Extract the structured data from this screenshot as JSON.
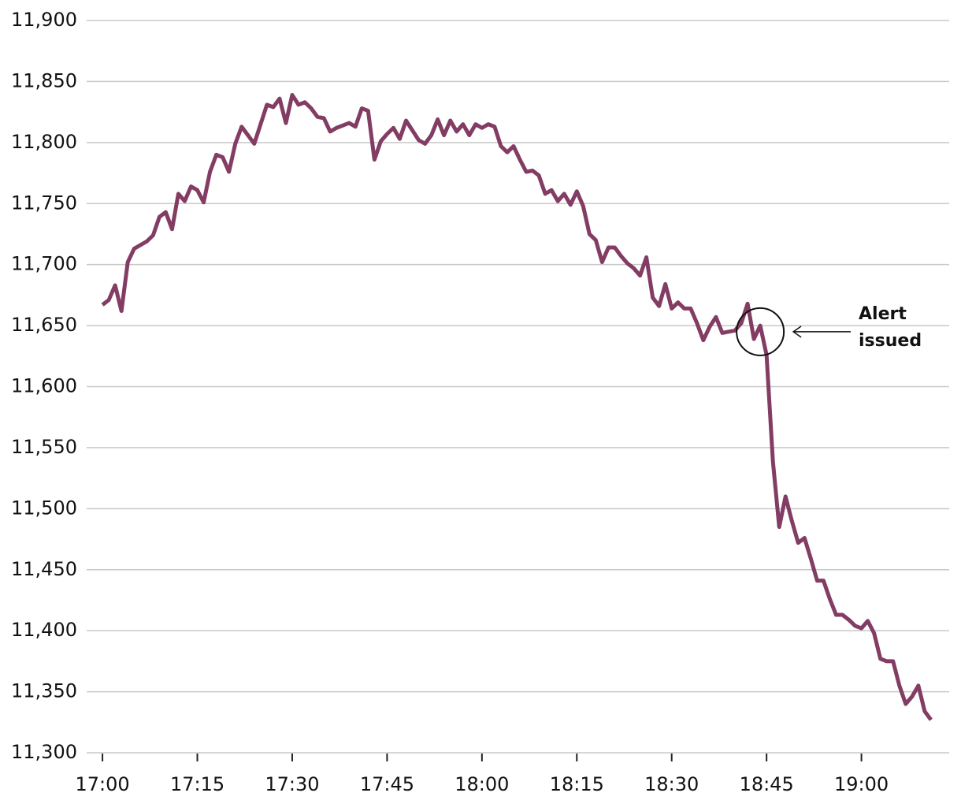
{
  "chart_data": {
    "type": "line",
    "x": [
      "17:00",
      "17:01",
      "17:02",
      "17:03",
      "17:04",
      "17:05",
      "17:06",
      "17:07",
      "17:08",
      "17:09",
      "17:10",
      "17:11",
      "17:12",
      "17:13",
      "17:14",
      "17:15",
      "17:16",
      "17:17",
      "17:18",
      "17:19",
      "17:20",
      "17:21",
      "17:22",
      "17:23",
      "17:24",
      "17:25",
      "17:26",
      "17:27",
      "17:28",
      "17:29",
      "17:30",
      "17:31",
      "17:32",
      "17:33",
      "17:34",
      "17:35",
      "17:36",
      "17:37",
      "17:38",
      "17:39",
      "17:40",
      "17:41",
      "17:42",
      "17:43",
      "17:44",
      "17:45",
      "17:46",
      "17:47",
      "17:48",
      "17:49",
      "17:50",
      "17:51",
      "17:52",
      "17:53",
      "17:54",
      "17:55",
      "17:56",
      "17:57",
      "17:58",
      "17:59",
      "18:00",
      "18:01",
      "18:02",
      "18:03",
      "18:04",
      "18:05",
      "18:06",
      "18:07",
      "18:08",
      "18:09",
      "18:10",
      "18:11",
      "18:12",
      "18:13",
      "18:14",
      "18:15",
      "18:16",
      "18:17",
      "18:18",
      "18:19",
      "18:20",
      "18:21",
      "18:22",
      "18:23",
      "18:24",
      "18:25",
      "18:26",
      "18:27",
      "18:28",
      "18:29",
      "18:30",
      "18:31",
      "18:32",
      "18:33",
      "18:34",
      "18:35",
      "18:36",
      "18:37",
      "18:38",
      "18:39",
      "18:40",
      "18:41",
      "18:42",
      "18:43",
      "18:44",
      "18:45",
      "18:46",
      "18:47",
      "18:48",
      "18:49",
      "18:50",
      "18:51",
      "18:52",
      "18:53",
      "18:54",
      "18:55",
      "18:56",
      "18:57",
      "18:58",
      "18:59",
      "19:00",
      "19:01",
      "19:02",
      "19:03",
      "19:04",
      "19:05",
      "19:06",
      "19:07",
      "19:08",
      "19:09",
      "19:10",
      "19:11"
    ],
    "series": [
      {
        "color": "#833c63",
        "values": [
          11667,
          11671,
          11683,
          11662,
          11702,
          11713,
          11716,
          11719,
          11724,
          11739,
          11743,
          11729,
          11758,
          11752,
          11764,
          11761,
          11751,
          11776,
          11790,
          11788,
          11776,
          11799,
          11813,
          11806,
          11799,
          11815,
          11831,
          11829,
          11836,
          11816,
          11839,
          11831,
          11833,
          11828,
          11821,
          11820,
          11809,
          11812,
          11814,
          11816,
          11813,
          11828,
          11826,
          11786,
          11801,
          11807,
          11812,
          11803,
          11818,
          11810,
          11802,
          11799,
          11806,
          11819,
          11806,
          11818,
          11809,
          11815,
          11806,
          11815,
          11812,
          11815,
          11813,
          11797,
          11792,
          11797,
          11786,
          11776,
          11777,
          11773,
          11758,
          11761,
          11752,
          11758,
          11749,
          11760,
          11748,
          11725,
          11720,
          11702,
          11714,
          11714,
          11707,
          11701,
          11697,
          11691,
          11706,
          11673,
          11666,
          11684,
          11664,
          11669,
          11664,
          11664,
          11652,
          11638,
          11649,
          11657,
          11644,
          11645,
          11646,
          11652,
          11668,
          11639,
          11650,
          11626,
          11539,
          11485,
          11510,
          11490,
          11472,
          11476,
          11459,
          11441,
          11441,
          11426,
          11413,
          11413,
          11409,
          11404,
          11402,
          11408,
          11398,
          11377,
          11375,
          11375,
          11355,
          11340,
          11346,
          11355,
          11334,
          11327
        ]
      }
    ],
    "xlim": [
      "16:57",
      "19:14"
    ],
    "xticks": [
      "17:00",
      "17:15",
      "17:30",
      "17:45",
      "18:00",
      "18:15",
      "18:30",
      "18:45",
      "19:00"
    ],
    "ylim": [
      11300,
      11900
    ],
    "yticks": [
      {
        "value": 11300,
        "label": "11,300"
      },
      {
        "value": 11350,
        "label": "11,350"
      },
      {
        "value": 11400,
        "label": "11,400"
      },
      {
        "value": 11450,
        "label": "11,450"
      },
      {
        "value": 11500,
        "label": "11,500"
      },
      {
        "value": 11550,
        "label": "11,550"
      },
      {
        "value": 11600,
        "label": "11,600"
      },
      {
        "value": 11650,
        "label": "11,650"
      },
      {
        "value": 11700,
        "label": "11,700"
      },
      {
        "value": 11750,
        "label": "11,750"
      },
      {
        "value": 11800,
        "label": "11,800"
      },
      {
        "value": 11850,
        "label": "11,850"
      },
      {
        "value": 11900,
        "label": "11,900"
      }
    ],
    "grid": true,
    "annotation": {
      "lines": [
        "Alert",
        "issued"
      ],
      "x": "18:44",
      "y": 11645
    }
  }
}
